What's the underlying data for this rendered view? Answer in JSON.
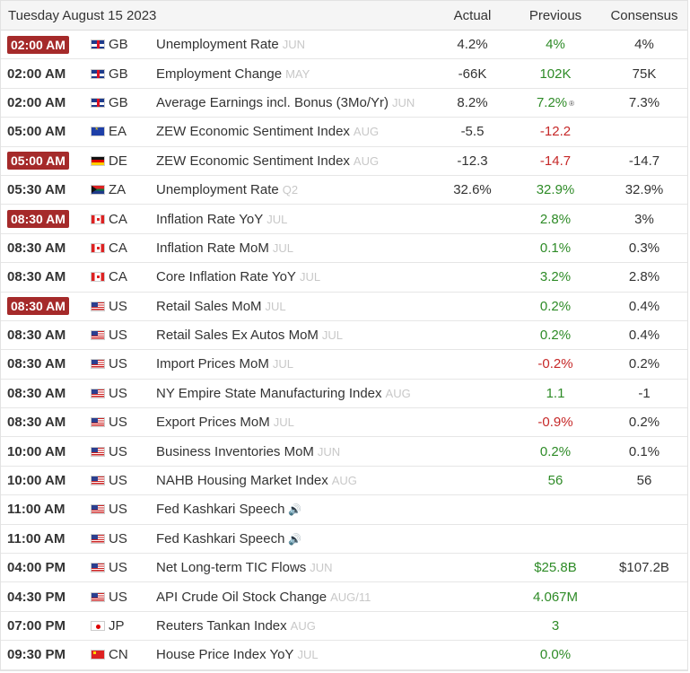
{
  "header": {
    "date": "Tuesday August 15 2023",
    "col_actual": "Actual",
    "col_previous": "Previous",
    "col_consensus": "Consensus"
  },
  "rows": [
    {
      "time": "02:00 AM",
      "highlight": true,
      "flag": "gb",
      "country": "GB",
      "event": "Unemployment Rate",
      "ref": "JUN",
      "speaker": false,
      "actual": "4.2%",
      "previous": "4%",
      "prev_color": "green",
      "prev_note": "",
      "consensus": "4%"
    },
    {
      "time": "02:00 AM",
      "highlight": false,
      "flag": "gb",
      "country": "GB",
      "event": "Employment Change",
      "ref": "MAY",
      "speaker": false,
      "actual": "-66K",
      "previous": "102K",
      "prev_color": "green",
      "prev_note": "",
      "consensus": "75K"
    },
    {
      "time": "02:00 AM",
      "highlight": false,
      "flag": "gb",
      "country": "GB",
      "event": "Average Earnings incl. Bonus (3Mo/Yr)",
      "ref": "JUN",
      "speaker": false,
      "actual": "8.2%",
      "previous": "7.2%",
      "prev_color": "green",
      "prev_note": "®",
      "consensus": "7.3%"
    },
    {
      "time": "05:00 AM",
      "highlight": false,
      "flag": "ea",
      "country": "EA",
      "event": "ZEW Economic Sentiment Index",
      "ref": "AUG",
      "speaker": false,
      "actual": "-5.5",
      "previous": "-12.2",
      "prev_color": "red",
      "prev_note": "",
      "consensus": ""
    },
    {
      "time": "05:00 AM",
      "highlight": true,
      "flag": "de",
      "country": "DE",
      "event": "ZEW Economic Sentiment Index",
      "ref": "AUG",
      "speaker": false,
      "actual": "-12.3",
      "previous": "-14.7",
      "prev_color": "red",
      "prev_note": "",
      "consensus": "-14.7"
    },
    {
      "time": "05:30 AM",
      "highlight": false,
      "flag": "za",
      "country": "ZA",
      "event": "Unemployment Rate",
      "ref": "Q2",
      "speaker": false,
      "actual": "32.6%",
      "previous": "32.9%",
      "prev_color": "green",
      "prev_note": "",
      "consensus": "32.9%"
    },
    {
      "time": "08:30 AM",
      "highlight": true,
      "flag": "ca",
      "country": "CA",
      "event": "Inflation Rate YoY",
      "ref": "JUL",
      "speaker": false,
      "actual": "",
      "previous": "2.8%",
      "prev_color": "green",
      "prev_note": "",
      "consensus": "3%"
    },
    {
      "time": "08:30 AM",
      "highlight": false,
      "flag": "ca",
      "country": "CA",
      "event": "Inflation Rate MoM",
      "ref": "JUL",
      "speaker": false,
      "actual": "",
      "previous": "0.1%",
      "prev_color": "green",
      "prev_note": "",
      "consensus": "0.3%"
    },
    {
      "time": "08:30 AM",
      "highlight": false,
      "flag": "ca",
      "country": "CA",
      "event": "Core Inflation Rate YoY",
      "ref": "JUL",
      "speaker": false,
      "actual": "",
      "previous": "3.2%",
      "prev_color": "green",
      "prev_note": "",
      "consensus": "2.8%"
    },
    {
      "time": "08:30 AM",
      "highlight": true,
      "flag": "us",
      "country": "US",
      "event": "Retail Sales MoM",
      "ref": "JUL",
      "speaker": false,
      "actual": "",
      "previous": "0.2%",
      "prev_color": "green",
      "prev_note": "",
      "consensus": "0.4%"
    },
    {
      "time": "08:30 AM",
      "highlight": false,
      "flag": "us",
      "country": "US",
      "event": "Retail Sales Ex Autos MoM",
      "ref": "JUL",
      "speaker": false,
      "actual": "",
      "previous": "0.2%",
      "prev_color": "green",
      "prev_note": "",
      "consensus": "0.4%"
    },
    {
      "time": "08:30 AM",
      "highlight": false,
      "flag": "us",
      "country": "US",
      "event": "Import Prices MoM",
      "ref": "JUL",
      "speaker": false,
      "actual": "",
      "previous": "-0.2%",
      "prev_color": "red",
      "prev_note": "",
      "consensus": "0.2%"
    },
    {
      "time": "08:30 AM",
      "highlight": false,
      "flag": "us",
      "country": "US",
      "event": "NY Empire State Manufacturing Index",
      "ref": "AUG",
      "speaker": false,
      "actual": "",
      "previous": "1.1",
      "prev_color": "green",
      "prev_note": "",
      "consensus": "-1"
    },
    {
      "time": "08:30 AM",
      "highlight": false,
      "flag": "us",
      "country": "US",
      "event": "Export Prices MoM",
      "ref": "JUL",
      "speaker": false,
      "actual": "",
      "previous": "-0.9%",
      "prev_color": "red",
      "prev_note": "",
      "consensus": "0.2%"
    },
    {
      "time": "10:00 AM",
      "highlight": false,
      "flag": "us",
      "country": "US",
      "event": "Business Inventories MoM",
      "ref": "JUN",
      "speaker": false,
      "actual": "",
      "previous": "0.2%",
      "prev_color": "green",
      "prev_note": "",
      "consensus": "0.1%"
    },
    {
      "time": "10:00 AM",
      "highlight": false,
      "flag": "us",
      "country": "US",
      "event": "NAHB Housing Market Index",
      "ref": "AUG",
      "speaker": false,
      "actual": "",
      "previous": "56",
      "prev_color": "green",
      "prev_note": "",
      "consensus": "56"
    },
    {
      "time": "11:00 AM",
      "highlight": false,
      "flag": "us",
      "country": "US",
      "event": "Fed Kashkari Speech",
      "ref": "",
      "speaker": true,
      "actual": "",
      "previous": "",
      "prev_color": "green",
      "prev_note": "",
      "consensus": ""
    },
    {
      "time": "11:00 AM",
      "highlight": false,
      "flag": "us",
      "country": "US",
      "event": "Fed Kashkari Speech",
      "ref": "",
      "speaker": true,
      "actual": "",
      "previous": "",
      "prev_color": "green",
      "prev_note": "",
      "consensus": ""
    },
    {
      "time": "04:00 PM",
      "highlight": false,
      "flag": "us",
      "country": "US",
      "event": "Net Long-term TIC Flows",
      "ref": "JUN",
      "speaker": false,
      "actual": "",
      "previous": "$25.8B",
      "prev_color": "green",
      "prev_note": "",
      "consensus": "$107.2B"
    },
    {
      "time": "04:30 PM",
      "highlight": false,
      "flag": "us",
      "country": "US",
      "event": "API Crude Oil Stock Change",
      "ref": "AUG/11",
      "speaker": false,
      "actual": "",
      "previous": "4.067M",
      "prev_color": "green",
      "prev_note": "",
      "consensus": ""
    },
    {
      "time": "07:00 PM",
      "highlight": false,
      "flag": "jp",
      "country": "JP",
      "event": "Reuters Tankan Index",
      "ref": "AUG",
      "speaker": false,
      "actual": "",
      "previous": "3",
      "prev_color": "green",
      "prev_note": "",
      "consensus": ""
    },
    {
      "time": "09:30 PM",
      "highlight": false,
      "flag": "cn",
      "country": "CN",
      "event": "House Price Index YoY",
      "ref": "JUL",
      "speaker": false,
      "actual": "",
      "previous": "0.0%",
      "prev_color": "green",
      "prev_note": "",
      "consensus": ""
    }
  ]
}
